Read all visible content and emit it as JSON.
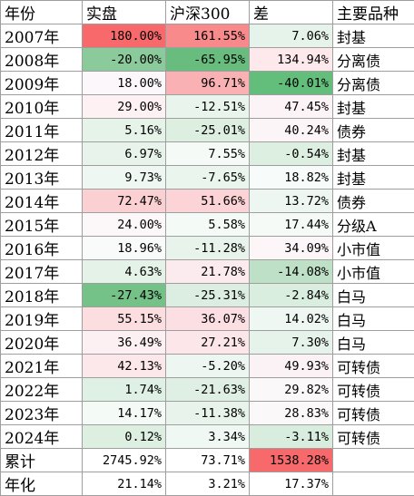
{
  "headers": [
    "年份",
    "实盘",
    "沪深300",
    "差",
    "主要品种"
  ],
  "rows": [
    {
      "year": "2007年",
      "actual": "180.00%",
      "hs300": "161.55%",
      "diff": "7.06%",
      "style": "封基",
      "colors": [
        "#f8696b",
        "#f98a8c",
        "#e6f3ea"
      ]
    },
    {
      "year": "2008年",
      "actual": "-20.00%",
      "hs300": "-65.95%",
      "diff": "134.94%",
      "style": "分离债",
      "colors": [
        "#8bca9b",
        "#68bc7e",
        "#fde9ec"
      ]
    },
    {
      "year": "2009年",
      "actual": "18.00%",
      "hs300": "96.71%",
      "diff": "-40.01%",
      "style": "分离债",
      "colors": [
        "#fbf7fa",
        "#fab1b3",
        "#63be7b"
      ]
    },
    {
      "year": "2010年",
      "actual": "29.00%",
      "hs300": "-12.51%",
      "diff": "47.45%",
      "style": "封基",
      "colors": [
        "#fdf1f3",
        "#e9f4ed",
        "#fcf3f6"
      ]
    },
    {
      "year": "2011年",
      "actual": "5.16%",
      "hs300": "-25.01%",
      "diff": "40.24%",
      "style": "债券",
      "colors": [
        "#e6f3e9",
        "#dcefe1",
        "#fcf5f7"
      ]
    },
    {
      "year": "2012年",
      "actual": "6.97%",
      "hs300": "7.55%",
      "diff": "-0.54%",
      "style": "封基",
      "colors": [
        "#e8f4eb",
        "#f5faf7",
        "#dcefe1"
      ]
    },
    {
      "year": "2013年",
      "actual": "9.73%",
      "hs300": "-7.65%",
      "diff": "18.82%",
      "style": "封基",
      "colors": [
        "#eef7f1",
        "#eaf5ed",
        "#f7fbf9"
      ]
    },
    {
      "year": "2014年",
      "actual": "72.47%",
      "hs300": "51.66%",
      "diff": "13.72%",
      "style": "债券",
      "colors": [
        "#fbd0d3",
        "#fcd3d6",
        "#edf6f0"
      ]
    },
    {
      "year": "2015年",
      "actual": "24.00%",
      "hs300": "5.58%",
      "diff": "17.44%",
      "style": "分级A",
      "colors": [
        "#fcf7f9",
        "#f4faf6",
        "#f5faf7"
      ]
    },
    {
      "year": "2016年",
      "actual": "18.96%",
      "hs300": "-11.28%",
      "diff": "34.09%",
      "style": "小市值",
      "colors": [
        "#f9fbfb",
        "#e8f4eb",
        "#fdf6f8"
      ]
    },
    {
      "year": "2017年",
      "actual": "4.63%",
      "hs300": "21.78%",
      "diff": "-14.08%",
      "style": "小市值",
      "colors": [
        "#e4f2e8",
        "#fcebee",
        "#bde0c6"
      ]
    },
    {
      "year": "2018年",
      "actual": "-27.43%",
      "hs300": "-25.31%",
      "diff": "-2.84%",
      "style": "白马",
      "colors": [
        "#74c287",
        "#dceee1",
        "#d9eedf"
      ]
    },
    {
      "year": "2019年",
      "actual": "55.15%",
      "hs300": "36.07%",
      "diff": "14.02%",
      "style": "白马",
      "colors": [
        "#fcdde0",
        "#fcdfe2",
        "#eef7f1"
      ]
    },
    {
      "year": "2020年",
      "actual": "36.49%",
      "hs300": "27.21%",
      "diff": "7.30%",
      "style": "白马",
      "colors": [
        "#fdf0f2",
        "#fce6e9",
        "#e6f3ea"
      ]
    },
    {
      "year": "2021年",
      "actual": "42.13%",
      "hs300": "-5.20%",
      "diff": "49.93%",
      "style": "可转债",
      "colors": [
        "#fce7ea",
        "#edf6f0",
        "#fbf2f5"
      ]
    },
    {
      "year": "2022年",
      "actual": "1.74%",
      "hs300": "-21.63%",
      "diff": "29.82%",
      "style": "可转债",
      "colors": [
        "#dff0e4",
        "#dfefe3",
        "#fbf8fa"
      ]
    },
    {
      "year": "2023年",
      "actual": "14.17%",
      "hs300": "-11.38%",
      "diff": "28.83%",
      "style": "可转债",
      "colors": [
        "#f4faf6",
        "#e8f4eb",
        "#fbf8fa"
      ]
    },
    {
      "year": "2024年",
      "actual": "0.12%",
      "hs300": "3.34%",
      "diff": "-3.11%",
      "style": "可转债",
      "colors": [
        "#dcefe1",
        "#f0f8f3",
        "#d8eddd"
      ]
    }
  ],
  "footer": [
    {
      "label": "累计",
      "actual": "2745.92%",
      "hs300": "73.71%",
      "diff": "1538.28%",
      "style": "",
      "colors": [
        "#ffffff",
        "#ffffff",
        "#f8696b"
      ]
    },
    {
      "label": "年化",
      "actual": "21.14%",
      "hs300": "3.21%",
      "diff": "17.37%",
      "style": "",
      "colors": [
        "#ffffff",
        "#ffffff",
        "#ffffff"
      ]
    }
  ]
}
